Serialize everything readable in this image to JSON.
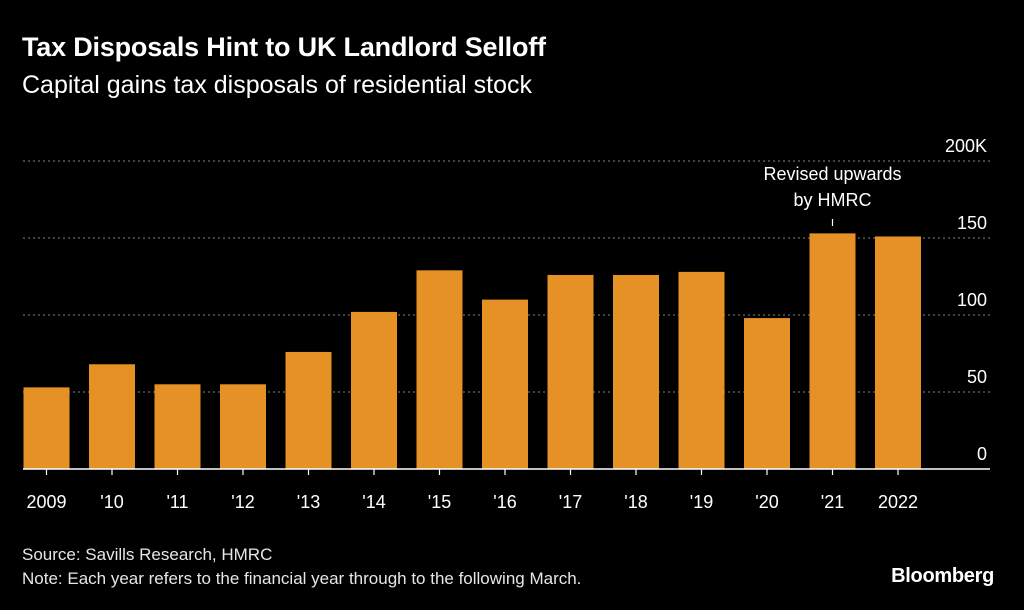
{
  "title": "Tax Disposals Hint to UK Landlord Selloff",
  "subtitle": "Capital gains tax disposals of residential stock",
  "chart_data": {
    "type": "bar",
    "categories": [
      "2009",
      "'10",
      "'11",
      "'12",
      "'13",
      "'14",
      "'15",
      "'16",
      "'17",
      "'18",
      "'19",
      "'20",
      "'21",
      "2022"
    ],
    "values": [
      53,
      68,
      55,
      55,
      76,
      102,
      129,
      110,
      126,
      126,
      128,
      98,
      153,
      151
    ],
    "ylim": [
      0,
      200
    ],
    "yticks": [
      {
        "value": 0,
        "label": "0"
      },
      {
        "value": 50,
        "label": "50"
      },
      {
        "value": 100,
        "label": "100"
      },
      {
        "value": 150,
        "label": "150"
      },
      {
        "value": 200,
        "label": "200K"
      }
    ],
    "xlabel": "",
    "ylabel": "",
    "grid": true,
    "annotation": {
      "category": "'21",
      "lines": [
        "Revised upwards",
        "by HMRC"
      ]
    },
    "bar_color": "#e69126",
    "grid_color": "#6b6b6b",
    "axis_color": "#ffffff"
  },
  "footer": {
    "source": "Source: Savills Research, HMRC",
    "note": "Note: Each year refers to the financial year through to the following March."
  },
  "brand": "Bloomberg"
}
